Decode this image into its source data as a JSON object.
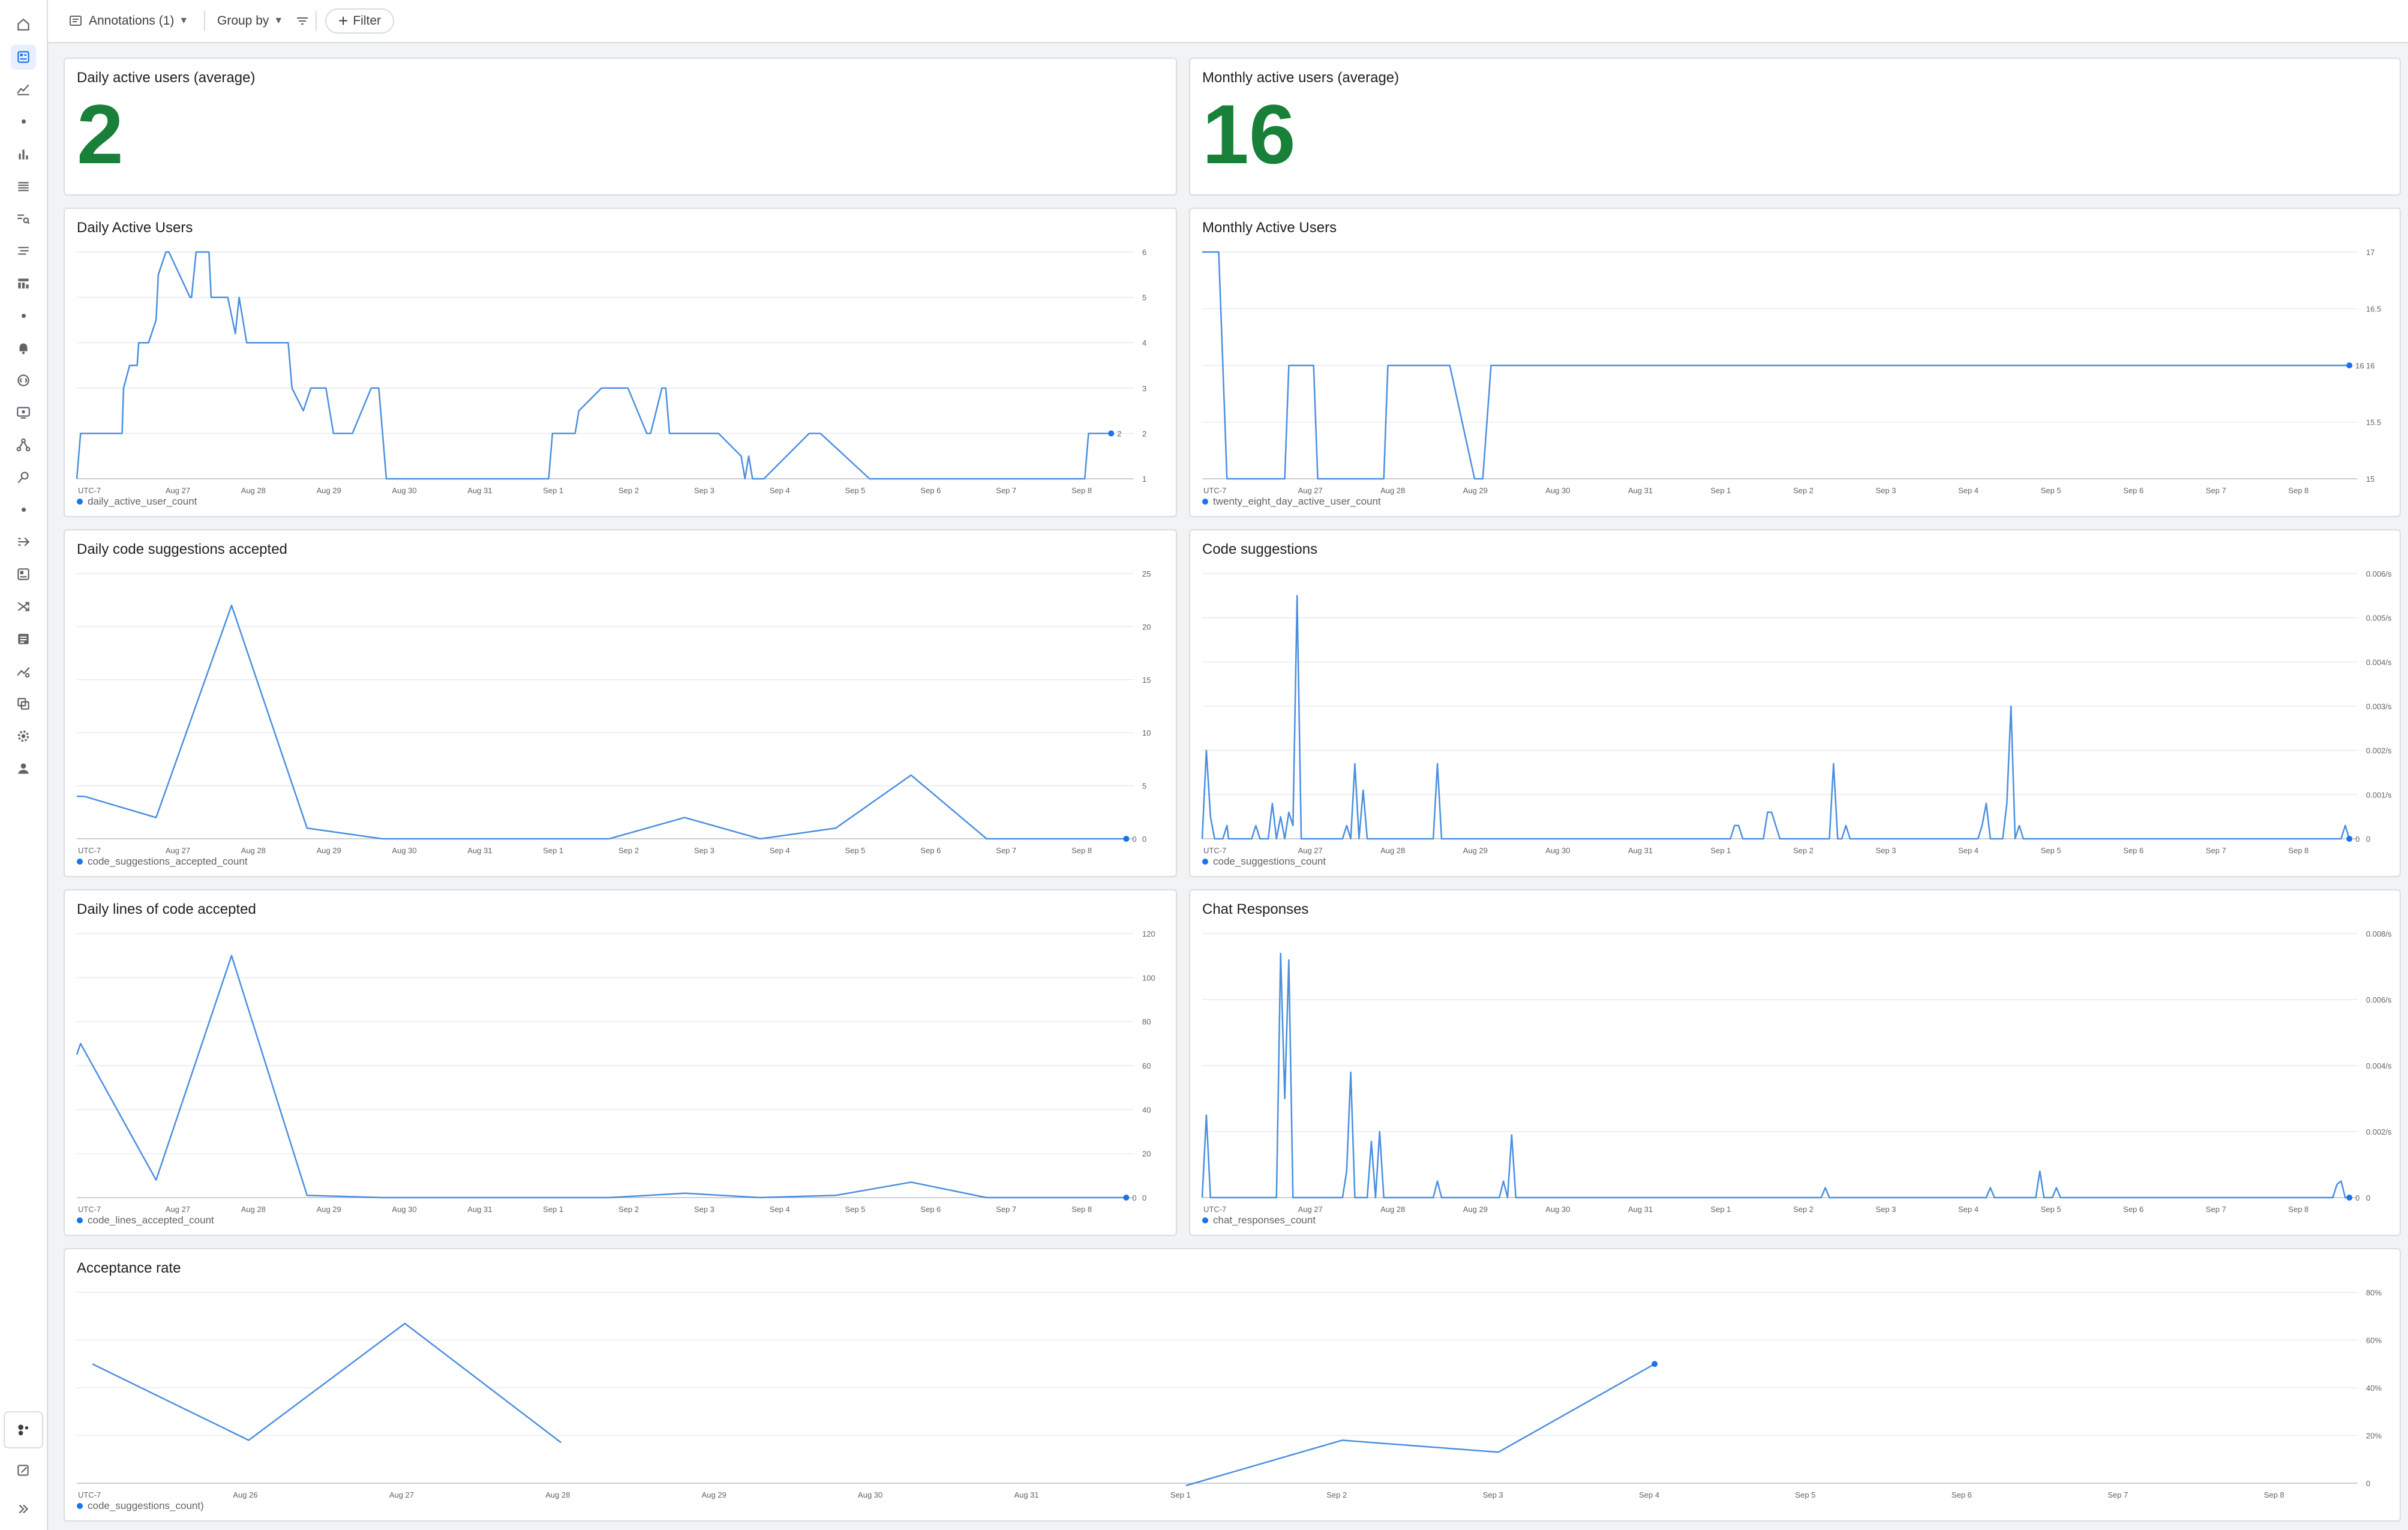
{
  "toolbar": {
    "annotations_label": "Annotations (1)",
    "group_by_label": "Group by",
    "filter_label": "Filter"
  },
  "sidebar": {
    "items": [
      "home-icon",
      "dashboard-icon",
      "chart-icon",
      "dot",
      "bar-chart-icon",
      "list-icon",
      "search-list-icon",
      "tune-icon",
      "reports-icon",
      "dot",
      "bell-icon",
      "api-icon",
      "monitor-icon",
      "graph-icon",
      "trace-icon",
      "dot",
      "pipeline-icon",
      "panel-icon",
      "shuffle-icon",
      "notes-icon",
      "trend-icon",
      "layers-icon",
      "gear-icon",
      "person-icon"
    ],
    "bottom_items": [
      "apps-icon",
      "edit-icon",
      "expand-icon"
    ]
  },
  "colors": {
    "accent": "#1a73e8",
    "line": "#4a8fe0",
    "stat_green": "#188038"
  },
  "scorecards": [
    {
      "title": "Daily active users (average)",
      "value": "2"
    },
    {
      "title": "Monthly active users (average)",
      "value": "16"
    }
  ],
  "chart_data": [
    {
      "type": "line",
      "title": "Daily Active Users",
      "x_ticks": [
        "UTC-7",
        "Aug 27",
        "Aug 28",
        "Aug 29",
        "Aug 30",
        "Aug 31",
        "Sep 1",
        "Sep 2",
        "Sep 3",
        "Sep 4",
        "Sep 5",
        "Sep 6",
        "Sep 7",
        "Sep 8"
      ],
      "y_ticks": [
        "1",
        "2",
        "3",
        "4",
        "5",
        "6"
      ],
      "ylim": [
        1,
        6
      ],
      "xlim": [
        0,
        14
      ],
      "legend": "daily_active_user_count",
      "end_label": "2",
      "series": [
        {
          "name": "daily_active_user_count",
          "x": [
            0,
            0.05,
            0.6,
            0.62,
            0.7,
            0.8,
            0.82,
            0.95,
            1.05,
            1.08,
            1.18,
            1.22,
            1.5,
            1.52,
            1.58,
            1.62,
            1.75,
            1.78,
            1.8,
            1.85,
            1.9,
            2.0,
            2.1,
            2.15,
            2.25,
            2.3,
            2.4,
            2.45,
            2.5,
            2.55,
            2.6,
            2.65,
            2.75,
            2.8,
            2.85,
            3.0,
            3.1,
            3.2,
            3.25,
            3.3,
            3.4,
            3.45,
            3.5,
            3.65,
            3.9,
            4.0,
            4.1,
            4.6,
            5.0,
            6.0,
            6.25,
            6.3,
            6.6,
            6.65,
            6.95,
            7.0,
            7.25,
            7.3,
            7.55,
            7.6,
            7.75,
            7.8,
            7.85,
            7.95,
            8.05,
            8.1,
            8.15,
            8.45,
            8.5,
            8.8,
            8.85,
            8.9,
            8.95,
            9.0,
            9.05,
            9.1,
            9.7,
            9.75,
            9.8,
            9.85,
            10.5,
            10.55,
            10.6,
            10.65,
            10.7,
            10.75,
            10.85,
            11.0,
            11.5,
            12.0,
            13.0,
            13.35,
            13.4,
            13.5,
            13.65,
            13.7
          ],
          "y": [
            1.0,
            2.0,
            2.0,
            3.0,
            3.5,
            3.5,
            4.0,
            4.0,
            4.5,
            5.5,
            6.0,
            6.0,
            5.0,
            5.0,
            6.0,
            6.0,
            6.0,
            5.0,
            5.0,
            5.0,
            5.0,
            5.0,
            4.2,
            5.0,
            4.0,
            4.0,
            4.0,
            4.0,
            4.0,
            4.0,
            4.0,
            4.0,
            4.0,
            4.0,
            3.0,
            2.5,
            3.0,
            3.0,
            3.0,
            3.0,
            2.0,
            2.0,
            2.0,
            2.0,
            3.0,
            3.0,
            1.0,
            1.0,
            1.0,
            1.0,
            1.0,
            2.0,
            2.0,
            2.5,
            3.0,
            3.0,
            3.0,
            3.0,
            2.0,
            2.0,
            3.0,
            3.0,
            2.0,
            2.0,
            2.0,
            2.0,
            2.0,
            2.0,
            2.0,
            1.5,
            1.0,
            1.5,
            1.0,
            1.0,
            1.0,
            1.0,
            2.0,
            2.0,
            2.0,
            2.0,
            1.0,
            1.0,
            1.0,
            1.0,
            1.0,
            1.0,
            1.0,
            1.0,
            1.0,
            1.0,
            1.0,
            1.0,
            2.0,
            2.0,
            2.0,
            2.0
          ]
        }
      ]
    },
    {
      "type": "line",
      "title": "Monthly Active Users",
      "x_ticks": [
        "UTC-7",
        "Aug 27",
        "Aug 28",
        "Aug 29",
        "Aug 30",
        "Aug 31",
        "Sep 1",
        "Sep 2",
        "Sep 3",
        "Sep 4",
        "Sep 5",
        "Sep 6",
        "Sep 7",
        "Sep 8"
      ],
      "y_ticks": [
        "15",
        "15.5",
        "16",
        "16.5",
        "17"
      ],
      "ylim": [
        15,
        17
      ],
      "xlim": [
        0,
        14
      ],
      "legend": "twenty_eight_day_active_user_count",
      "end_label": "16",
      "series": [
        {
          "name": "twenty_eight_day_active_user_count",
          "x": [
            0,
            0.2,
            0.3,
            0.6,
            1.0,
            1.05,
            1.2,
            1.35,
            1.4,
            1.55,
            2.0,
            2.2,
            2.25,
            2.3,
            2.75,
            3.0,
            3.3,
            3.4,
            3.5,
            13.9
          ],
          "y": [
            17,
            17,
            15,
            15,
            15,
            16,
            16,
            16,
            15,
            15,
            15,
            15,
            16,
            16,
            16,
            16,
            15,
            15,
            16,
            16
          ]
        }
      ]
    },
    {
      "type": "line",
      "title": "Daily code suggestions accepted",
      "x_ticks": [
        "UTC-7",
        "Aug 27",
        "Aug 28",
        "Aug 29",
        "Aug 30",
        "Aug 31",
        "Sep 1",
        "Sep 2",
        "Sep 3",
        "Sep 4",
        "Sep 5",
        "Sep 6",
        "Sep 7",
        "Sep 8"
      ],
      "y_ticks": [
        "0",
        "5",
        "10",
        "15",
        "20",
        "25"
      ],
      "ylim": [
        0,
        25
      ],
      "xlim": [
        0,
        14
      ],
      "legend": "code_suggestions_accepted_count",
      "end_label": "0",
      "series": [
        {
          "name": "code_suggestions_accepted_count",
          "x": [
            0,
            0.1,
            1.05,
            2.05,
            3.05,
            4.05,
            5.05,
            6.05,
            7.05,
            8.05,
            9.05,
            10.05,
            11.05,
            12.05,
            13.05,
            13.9
          ],
          "y": [
            4,
            4,
            2,
            22,
            1,
            0,
            0,
            0,
            0,
            2,
            0,
            1,
            6,
            0,
            0,
            0
          ]
        }
      ]
    },
    {
      "type": "line",
      "title": "Code suggestions",
      "x_ticks": [
        "UTC-7",
        "Aug 27",
        "Aug 28",
        "Aug 29",
        "Aug 30",
        "Aug 31",
        "Sep 1",
        "Sep 2",
        "Sep 3",
        "Sep 4",
        "Sep 5",
        "Sep 6",
        "Sep 7",
        "Sep 8"
      ],
      "y_ticks": [
        "0",
        "0.001/s",
        "0.002/s",
        "0.003/s",
        "0.004/s",
        "0.005/s",
        "0.006/s"
      ],
      "ylim": [
        0,
        0.006
      ],
      "xlim": [
        0,
        14
      ],
      "legend": "code_suggestions_count",
      "end_label": "0",
      "series": [
        {
          "name": "code_suggestions_count",
          "x": [
            0,
            0.05,
            0.1,
            0.15,
            0.25,
            0.3,
            0.32,
            0.4,
            0.6,
            0.65,
            0.7,
            0.8,
            0.85,
            0.9,
            0.95,
            1.0,
            1.05,
            1.1,
            1.15,
            1.2,
            1.25,
            1.3,
            1.35,
            1.7,
            1.75,
            1.8,
            1.85,
            1.9,
            1.95,
            2.0,
            2.05,
            2.8,
            2.85,
            2.9,
            6.4,
            6.45,
            6.5,
            6.55,
            6.8,
            6.85,
            6.9,
            7.0,
            7.6,
            7.65,
            7.7,
            7.75,
            7.8,
            7.85,
            9.4,
            9.45,
            9.5,
            9.55,
            9.7,
            9.75,
            9.8,
            9.85,
            9.9,
            9.95,
            10.0,
            13.8,
            13.85,
            13.9
          ],
          "y": [
            0,
            0.002,
            0.0005,
            0,
            0,
            0.0003,
            0,
            0,
            0,
            0.0003,
            0,
            0,
            0.0008,
            0,
            0.0005,
            0,
            0.0006,
            0.0003,
            0.0055,
            0,
            0,
            0,
            0,
            0,
            0.0003,
            0,
            0.0017,
            0,
            0.0011,
            0,
            0,
            0,
            0.0017,
            0,
            0,
            0.0003,
            0.0003,
            0,
            0,
            0.0006,
            0.0006,
            0,
            0,
            0.0017,
            0,
            0,
            0.0003,
            0,
            0,
            0.0003,
            0.0008,
            0,
            0,
            0.0008,
            0.003,
            0,
            0.0003,
            0,
            0,
            0,
            0.0003,
            0
          ]
        }
      ]
    },
    {
      "type": "line",
      "title": "Daily lines of code accepted",
      "x_ticks": [
        "UTC-7",
        "Aug 27",
        "Aug 28",
        "Aug 29",
        "Aug 30",
        "Aug 31",
        "Sep 1",
        "Sep 2",
        "Sep 3",
        "Sep 4",
        "Sep 5",
        "Sep 6",
        "Sep 7",
        "Sep 8"
      ],
      "y_ticks": [
        "0",
        "20",
        "40",
        "60",
        "80",
        "100",
        "120"
      ],
      "ylim": [
        0,
        120
      ],
      "xlim": [
        0,
        14
      ],
      "legend": "code_lines_accepted_count",
      "end_label": "0",
      "series": [
        {
          "name": "code_lines_accepted_count",
          "x": [
            0,
            0.05,
            1.05,
            2.05,
            3.05,
            4.05,
            5.05,
            6.05,
            7.05,
            8.05,
            9.05,
            10.05,
            11.05,
            12.05,
            13.05,
            13.9
          ],
          "y": [
            65,
            70,
            8,
            110,
            1,
            0,
            0,
            0,
            0,
            2,
            0,
            1,
            7,
            0,
            0,
            0
          ]
        }
      ]
    },
    {
      "type": "line",
      "title": "Chat Responses",
      "x_ticks": [
        "UTC-7",
        "Aug 27",
        "Aug 28",
        "Aug 29",
        "Aug 30",
        "Aug 31",
        "Sep 1",
        "Sep 2",
        "Sep 3",
        "Sep 4",
        "Sep 5",
        "Sep 6",
        "Sep 7",
        "Sep 8"
      ],
      "y_ticks": [
        "0",
        "0.002/s",
        "0.004/s",
        "0.006/s",
        "0.008/s"
      ],
      "ylim": [
        0,
        0.008
      ],
      "xlim": [
        0,
        14
      ],
      "legend": "chat_responses_count",
      "end_label": "0",
      "series": [
        {
          "name": "chat_responses_count",
          "x": [
            0,
            0.05,
            0.1,
            0.15,
            0.9,
            0.95,
            1.0,
            1.05,
            1.1,
            1.15,
            1.2,
            1.3,
            1.7,
            1.75,
            1.8,
            1.85,
            1.9,
            2.0,
            2.05,
            2.1,
            2.15,
            2.2,
            2.8,
            2.85,
            2.9,
            3.6,
            3.65,
            3.7,
            3.75,
            3.8,
            7.5,
            7.55,
            7.6,
            9.5,
            9.55,
            9.6,
            10.1,
            10.15,
            10.2,
            10.3,
            10.35,
            10.4,
            13.7,
            13.75,
            13.8,
            13.85,
            13.9
          ],
          "y": [
            0,
            0.0025,
            0,
            0,
            0,
            0.0074,
            0.003,
            0.0072,
            0,
            0,
            0,
            0,
            0,
            0.0008,
            0.0038,
            0,
            0,
            0,
            0.0017,
            0,
            0.002,
            0,
            0,
            0.0005,
            0,
            0,
            0.0005,
            0,
            0.0019,
            0,
            0,
            0.0003,
            0,
            0,
            0.0003,
            0,
            0,
            0.0008,
            0,
            0,
            0.0003,
            0,
            0,
            0.0004,
            0.0005,
            0,
            0
          ]
        }
      ]
    },
    {
      "type": "line",
      "title": "Acceptance rate",
      "x_ticks": [
        "UTC-7",
        "Aug 26",
        "Aug 27",
        "Aug 28",
        "Aug 29",
        "Aug 30",
        "Aug 31",
        "Sep 1",
        "Sep 2",
        "Sep 3",
        "Sep 4",
        "Sep 5",
        "Sep 6",
        "Sep 7",
        "Sep 8"
      ],
      "y_ticks": [
        "0",
        "20%",
        "40%",
        "60%",
        "80%"
      ],
      "ylim": [
        0,
        80
      ],
      "xlim": [
        0,
        14.6
      ],
      "legend": "code_suggestions_count)",
      "series": [
        {
          "name": "code_suggestions_count)",
          "x": [
            0.1,
            1.1,
            2.1,
            3.1,
            null,
            7.1,
            8.1,
            9.1,
            10.1
          ],
          "y": [
            50,
            18,
            67,
            17,
            null,
            -5,
            18,
            13,
            50
          ]
        }
      ]
    }
  ]
}
